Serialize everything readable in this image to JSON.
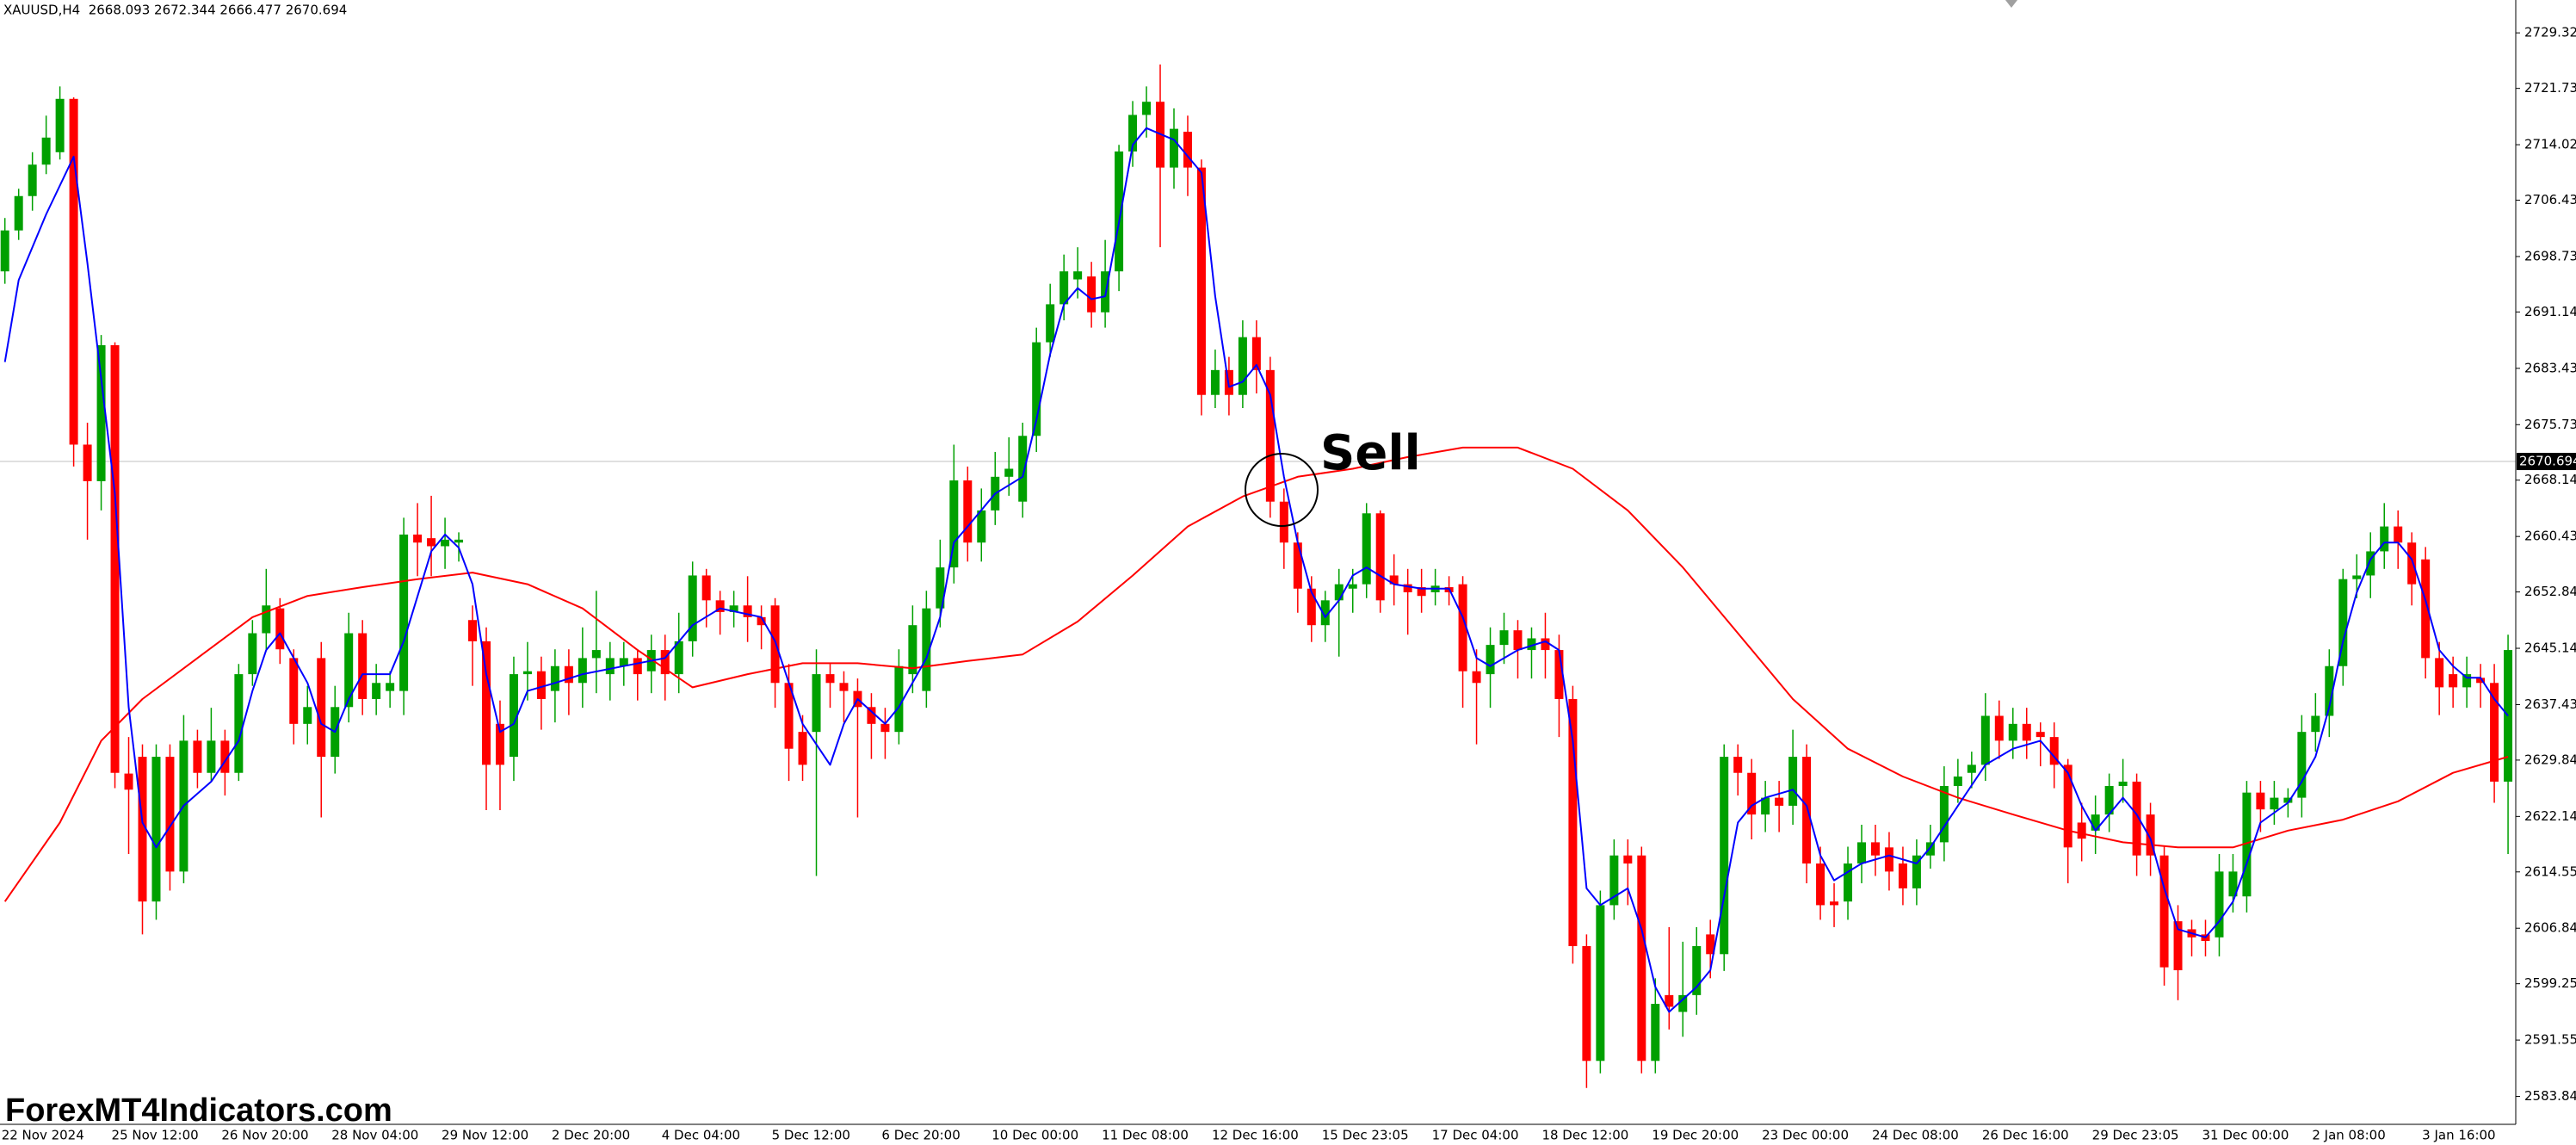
{
  "chart_data": {
    "type": "candlestick",
    "header": "XAUUSD,H4  2668.093 2672.344 2666.477 2670.694",
    "annotation": "Sell",
    "watermark": "ForexMT4Indicators.com",
    "up_color": "#00a000",
    "down_color": "#ff0000",
    "current_price": 2670.694,
    "ylim": [
      2580.02,
      2733.82
    ],
    "yticks": [
      2729.325,
      {
        "value": 2721.73,
        "label": "2721.730"
      },
      2714.025,
      2706.435,
      {
        "value": 2698.73,
        "label": "2698.730"
      },
      2691.145,
      2683.435,
      {
        "value": 2675.73,
        "label": "2675.730"
      },
      {
        "value": 2668.14,
        "label": "2668.140"
      },
      2660.435,
      2652.845,
      {
        "value": 2645.14,
        "label": "2645.140"
      },
      2637.435,
      2629.845,
      {
        "value": 2622.14,
        "label": "2622.140"
      },
      {
        "value": 2614.55,
        "label": "2614.550"
      },
      2606.845,
      2599.255,
      {
        "value": 2591.55,
        "label": "2591.550"
      },
      2583.845
    ],
    "categories": [
      "22 Nov 2024",
      null,
      null,
      null,
      null,
      null,
      null,
      null,
      "25 Nov 12:00",
      null,
      null,
      null,
      null,
      null,
      null,
      null,
      "26 Nov 20:00",
      null,
      null,
      null,
      null,
      null,
      null,
      null,
      "28 Nov 04:00",
      null,
      null,
      null,
      null,
      null,
      null,
      null,
      "29 Nov 12:00",
      null,
      null,
      null,
      null,
      null,
      null,
      null,
      "2 Dec 20:00",
      null,
      null,
      null,
      null,
      null,
      null,
      null,
      "4 Dec 04:00",
      null,
      null,
      null,
      null,
      null,
      null,
      null,
      "5 Dec 12:00",
      null,
      null,
      null,
      null,
      null,
      null,
      null,
      "6 Dec 20:00",
      null,
      null,
      null,
      null,
      null,
      null,
      null,
      "10 Dec 00:00",
      null,
      null,
      null,
      null,
      null,
      null,
      null,
      "11 Dec 08:00",
      null,
      null,
      null,
      null,
      null,
      null,
      null,
      "12 Dec 16:00",
      null,
      null,
      null,
      null,
      null,
      null,
      null,
      "15 Dec 23:05",
      null,
      null,
      null,
      null,
      null,
      null,
      null,
      "17 Dec 04:00",
      null,
      null,
      null,
      null,
      null,
      null,
      null,
      "18 Dec 12:00",
      null,
      null,
      null,
      null,
      null,
      null,
      null,
      "19 Dec 20:00",
      null,
      null,
      null,
      null,
      null,
      null,
      null,
      "23 Dec 00:00",
      null,
      null,
      null,
      null,
      null,
      null,
      null,
      "24 Dec 08:00",
      null,
      null,
      null,
      null,
      null,
      null,
      null,
      "26 Dec 16:00",
      null,
      null,
      null,
      null,
      null,
      null,
      null,
      "29 Dec 23:05",
      null,
      null,
      null,
      null,
      null,
      null,
      null,
      "31 Dec 00:00",
      null,
      null,
      null,
      null,
      null,
      null,
      null,
      "2 Jan 08:00",
      null,
      null,
      null,
      null,
      null,
      null,
      null,
      "3 Jan 16:00",
      null,
      null,
      null,
      null,
      null,
      null
    ],
    "open": [
      2696.7,
      2702.3,
      2707,
      2711.3,
      2713,
      2720.3,
      2673,
      2668,
      2686.6,
      2628,
      2630.3,
      2610.5,
      2630.3,
      2614.6,
      2632.5,
      2628.1,
      2632.5,
      2628.1,
      2641.6,
      2647.2,
      2650.6,
      2643.8,
      2634.8,
      2643.8,
      2630.3,
      2637.1,
      2647.2,
      2638.2,
      2639.3,
      2639.3,
      2660.7,
      2660.2,
      2659.1,
      2659.6,
      2649,
      2646.1,
      2634.8,
      2630.3,
      2641.6,
      2642,
      2639.3,
      2642.7,
      2640.4,
      2643.8,
      2641.6,
      2642.7,
      2643.8,
      2642,
      2644.9,
      2641.6,
      2646.1,
      2655.1,
      2651.7,
      2650.1,
      2651,
      2649.4,
      2651,
      2640.4,
      2633.7,
      2633.7,
      2641.6,
      2640.4,
      2639.3,
      2637.1,
      2634.8,
      2633.7,
      2641.6,
      2639.3,
      2650.6,
      2656.2,
      2668.1,
      2659.6,
      2664,
      2668.6,
      2665.2,
      2674.2,
      2687,
      2692.2,
      2695.6,
      2696,
      2691.1,
      2696.7,
      2713.1,
      2718.1,
      2719.9,
      2710.9,
      2715.8,
      2710.9,
      2679.8,
      2683.2,
      2679.8,
      2687.7,
      2683.2,
      2665.2,
      2659.6,
      2653.3,
      2648.3,
      2651.7,
      2653.3,
      2653.9,
      2663.6,
      2655.1,
      2653.9,
      2653.5,
      2652.8,
      2653.5,
      2653.9,
      2642,
      2641.6,
      2645.6,
      2647.6,
      2644.9,
      2646.5,
      2644.9,
      2638.2,
      2604.4,
      2588.7,
      2610,
      2616.8,
      2616.8,
      2588.7,
      2597.7,
      2595.4,
      2597.7,
      2606,
      2603.3,
      2630.3,
      2628.1,
      2622.4,
      2624.7,
      2623.6,
      2630.3,
      2615.7,
      2610.5,
      2610.5,
      2615.7,
      2618.6,
      2617.9,
      2615.7,
      2612.3,
      2616.8,
      2618.6,
      2626.3,
      2628.1,
      2629.2,
      2635.9,
      2632.5,
      2634.8,
      2633.7,
      2633,
      2629.2,
      2621.3,
      2620.2,
      2622.4,
      2626.3,
      2626.9,
      2622.4,
      2616.8,
      2607.8,
      2606.7,
      2606,
      2605.6,
      2611.2,
      2611.2,
      2625.4,
      2623.1,
      2624,
      2624.7,
      2633.7,
      2635.9,
      2642.7,
      2654.6,
      2655.1,
      2658.4,
      2661.8,
      2659.6,
      2657.3,
      2643.8,
      2641.6,
      2639.8,
      2641.1,
      2640.4,
      2626.9
    ],
    "high": [
      2704,
      2708,
      2713,
      2718,
      2722,
      2720.5,
      2676,
      2688,
      2687,
      2633,
      2632,
      2632,
      2632,
      2636,
      2634,
      2637,
      2634,
      2643,
      2649,
      2656,
      2652,
      2645,
      2640,
      2646,
      2640,
      2650,
      2649,
      2643,
      2642,
      2663,
      2665,
      2666,
      2663,
      2661,
      2651,
      2648,
      2638,
      2644,
      2646,
      2644,
      2645,
      2645,
      2648,
      2653,
      2646,
      2646,
      2645,
      2647,
      2647,
      2650,
      2657,
      2656,
      2653,
      2653,
      2655,
      2651,
      2652,
      2643,
      2636,
      2645,
      2643,
      2642,
      2641,
      2639,
      2637,
      2645,
      2651,
      2653,
      2660,
      2673,
      2670,
      2667,
      2672,
      2674,
      2676,
      2689,
      2695,
      2699,
      2700,
      2698,
      2701,
      2714,
      2720,
      2722,
      2725,
      2719,
      2718,
      2712,
      2686,
      2685,
      2690,
      2690,
      2685,
      2667,
      2661,
      2655,
      2653,
      2656,
      2656,
      2665,
      2664,
      2658,
      2656,
      2656,
      2656,
      2655,
      2655,
      2645,
      2648,
      2650,
      2649,
      2648,
      2650,
      2647,
      2640,
      2606,
      2612,
      2619,
      2619,
      2618,
      2600,
      2607,
      2605,
      2607,
      2608,
      2632,
      2632,
      2630,
      2627,
      2627,
      2634,
      2632,
      2618,
      2613,
      2618,
      2621,
      2621,
      2620,
      2618,
      2619,
      2621,
      2629,
      2630,
      2631,
      2639,
      2638,
      2637,
      2637,
      2635,
      2635,
      2630,
      2624,
      2625,
      2628,
      2630,
      2628,
      2624,
      2618,
      2610,
      2608,
      2608,
      2617,
      2617,
      2627,
      2627,
      2627,
      2626,
      2636,
      2639,
      2645,
      2656,
      2658,
      2661,
      2665,
      2664,
      2661,
      2659,
      2646,
      2644,
      2644,
      2643,
      2643,
      2647
    ],
    "low": [
      2695,
      2701,
      2705,
      2710,
      2712,
      2670,
      2660,
      2664,
      2626,
      2617,
      2606,
      2608,
      2612,
      2613,
      2626,
      2627,
      2625,
      2627,
      2640,
      2645,
      2643,
      2632,
      2632,
      2622,
      2628,
      2635,
      2636,
      2636,
      2637,
      2636,
      2655,
      2655,
      2656,
      2657,
      2640,
      2623,
      2623,
      2627,
      2638,
      2634,
      2635,
      2636,
      2637,
      2639,
      2638,
      2640,
      2638,
      2639,
      2638,
      2639,
      2644,
      2648,
      2647,
      2648,
      2646,
      2645,
      2637,
      2627,
      2627,
      2614,
      2637,
      2635,
      2622,
      2630,
      2630,
      2632,
      2639,
      2637,
      2648,
      2654,
      2657,
      2657,
      2662,
      2666,
      2663,
      2672,
      2685,
      2690,
      2693,
      2689,
      2689,
      2694,
      2711,
      2715,
      2700,
      2708,
      2707,
      2677,
      2678,
      2677,
      2678,
      2680,
      2663,
      2656,
      2650,
      2646,
      2646,
      2644,
      2650,
      2652,
      2650,
      2651,
      2647,
      2650,
      2651,
      2651,
      2637,
      2632,
      2637,
      2643,
      2641,
      2641,
      2641,
      2633,
      2602,
      2585,
      2587,
      2608,
      2610,
      2587,
      2587,
      2593,
      2592,
      2595,
      2600,
      2601,
      2625,
      2619,
      2620,
      2620,
      2621,
      2613,
      2608,
      2607,
      2608,
      2613,
      2614,
      2612,
      2610,
      2610,
      2615,
      2616,
      2624,
      2626,
      2627,
      2630,
      2630,
      2630,
      2629,
      2626,
      2613,
      2616,
      2617,
      2620,
      2624,
      2614,
      2614,
      2599,
      2597,
      2603,
      2603,
      2603,
      2609,
      2609,
      2620,
      2621,
      2622,
      2622,
      2631,
      2633,
      2640,
      2652,
      2652,
      2656,
      2656,
      2651,
      2641,
      2636,
      2637,
      2637,
      2637,
      2624,
      2617
    ],
    "close": [
      2702.3,
      2707,
      2711.3,
      2715,
      2720.3,
      2673,
      2668,
      2686.6,
      2628.1,
      2625.8,
      2610.5,
      2630.3,
      2614.6,
      2632.5,
      2628.1,
      2632.5,
      2628.1,
      2641.6,
      2647.2,
      2651,
      2645,
      2634.8,
      2637.1,
      2630.3,
      2637.1,
      2647.2,
      2638.2,
      2640.4,
      2640.4,
      2660.7,
      2659.6,
      2659.1,
      2660,
      2660,
      2646.1,
      2629.2,
      2629.2,
      2641.6,
      2642,
      2638.2,
      2642.7,
      2640.4,
      2643.8,
      2644.9,
      2643.8,
      2643.8,
      2641.6,
      2644.9,
      2641.6,
      2646.1,
      2655.1,
      2651.7,
      2650.1,
      2651,
      2649.4,
      2648.3,
      2640.4,
      2631.4,
      2629.2,
      2641.6,
      2640.4,
      2639.3,
      2637.1,
      2634.8,
      2633.7,
      2642.7,
      2648.3,
      2650.6,
      2656.2,
      2668.1,
      2659.6,
      2664,
      2668.6,
      2669.7,
      2674.2,
      2687,
      2692.2,
      2696.7,
      2696.7,
      2691.1,
      2696.7,
      2713.1,
      2718.1,
      2719.9,
      2710.9,
      2716.2,
      2710.9,
      2679.8,
      2683.2,
      2679.8,
      2687.7,
      2683.2,
      2665.2,
      2659.6,
      2653.3,
      2648.3,
      2651.7,
      2653.9,
      2653.9,
      2663.6,
      2651.7,
      2653.9,
      2652.8,
      2652.3,
      2653.7,
      2652.8,
      2642,
      2640.4,
      2645.6,
      2647.6,
      2644.9,
      2646.5,
      2644.9,
      2638.2,
      2604.4,
      2588.7,
      2610,
      2616.8,
      2615.7,
      2588.7,
      2596.5,
      2596.1,
      2597.7,
      2604.4,
      2603.3,
      2630.3,
      2628.1,
      2622.4,
      2624.7,
      2623.6,
      2630.3,
      2615.7,
      2610,
      2610,
      2615.7,
      2618.6,
      2616.8,
      2614.6,
      2612.3,
      2616.8,
      2618.6,
      2626.3,
      2627.6,
      2629.2,
      2635.9,
      2632.5,
      2634.8,
      2632.5,
      2633,
      2629.2,
      2617.9,
      2619.1,
      2622.4,
      2626.3,
      2626.9,
      2616.8,
      2616.8,
      2601.5,
      2601.1,
      2605.6,
      2605.1,
      2614.6,
      2614.6,
      2625.4,
      2623.1,
      2624.7,
      2624.7,
      2633.7,
      2635.9,
      2642.7,
      2654.6,
      2655.1,
      2658.4,
      2661.8,
      2659.6,
      2653.9,
      2643.8,
      2639.8,
      2639.8,
      2641.6,
      2640.4,
      2626.9,
      2644.9
    ],
    "lines": [
      {
        "color": "#ff0000",
        "x": [
          0,
          4,
          7,
          10,
          14,
          18,
          22,
          26,
          30,
          34,
          38,
          42,
          46,
          50,
          54,
          58,
          62,
          66,
          70,
          74,
          78,
          82,
          86,
          90,
          94,
          98,
          102,
          106,
          110,
          114,
          118,
          122,
          126,
          130,
          134,
          138,
          142,
          146,
          150,
          154,
          158,
          162,
          166,
          170,
          174,
          178,
          182
        ],
        "values": [
          2610.5,
          2621.3,
          2632.5,
          2638.2,
          2643.8,
          2649.4,
          2652.3,
          2653.5,
          2654.6,
          2655.5,
          2653.9,
          2650.6,
          2644.9,
          2639.8,
          2641.6,
          2643.1,
          2643.1,
          2642.4,
          2643.4,
          2644.3,
          2648.8,
          2655.1,
          2661.8,
          2665.9,
          2668.6,
          2669.7,
          2671.3,
          2672.6,
          2672.6,
          2669.7,
          2664,
          2656.2,
          2647.2,
          2638.2,
          2631.4,
          2627.6,
          2624.7,
          2622.4,
          2620.2,
          2618.6,
          2617.9,
          2617.9,
          2620.2,
          2621.7,
          2624.2,
          2628.1,
          2630.3
        ]
      },
      {
        "color": "#0000ff",
        "x": [
          0,
          1,
          3,
          5,
          6,
          8,
          9,
          10,
          11,
          13,
          15,
          17,
          18,
          19,
          20,
          22,
          23,
          24,
          25,
          26,
          28,
          29,
          31,
          32,
          33,
          34,
          35,
          36,
          37,
          38,
          40,
          42,
          45,
          48,
          50,
          52,
          55,
          56,
          57,
          58,
          60,
          61,
          62,
          64,
          65,
          67,
          68,
          69,
          70,
          72,
          74,
          75,
          76,
          77,
          78,
          79,
          80,
          81,
          82,
          83,
          85,
          87,
          88,
          89,
          90,
          91,
          92,
          93,
          94,
          95,
          96,
          97,
          98,
          99,
          101,
          103,
          105,
          106,
          107,
          108,
          110,
          112,
          113,
          114,
          115,
          116,
          118,
          119,
          120,
          121,
          123,
          124,
          125,
          126,
          127,
          128,
          130,
          131,
          132,
          133,
          135,
          137,
          139,
          140,
          142,
          144,
          146,
          148,
          150,
          151,
          152,
          154,
          155,
          156,
          157,
          158,
          160,
          161,
          162,
          163,
          164,
          166,
          167,
          168,
          169,
          170,
          171,
          172,
          173,
          174,
          175,
          176,
          177,
          178,
          179,
          180,
          181,
          182
        ],
        "values": [
          2684.3,
          2695.5,
          2704.5,
          2712.4,
          2697.8,
          2666.3,
          2637.1,
          2621.3,
          2617.9,
          2623.6,
          2626.9,
          2632.5,
          2639.3,
          2644.9,
          2647.2,
          2640.4,
          2634.8,
          2633.7,
          2638.2,
          2641.6,
          2641.6,
          2646.1,
          2658.4,
          2660.7,
          2658.9,
          2653.9,
          2641.6,
          2633.7,
          2634.8,
          2639.3,
          2640.4,
          2641.6,
          2642.7,
          2643.8,
          2648.3,
          2650.6,
          2649.4,
          2646.1,
          2640.4,
          2634.8,
          2629.2,
          2634.8,
          2638.2,
          2634.8,
          2637.1,
          2643.8,
          2649.4,
          2659.6,
          2661.8,
          2666.3,
          2668.6,
          2676.4,
          2685.4,
          2692.2,
          2694.4,
          2692.9,
          2693.3,
          2703.4,
          2714,
          2716.3,
          2714.7,
          2710.2,
          2693.3,
          2680.9,
          2681.6,
          2683.9,
          2679.8,
          2668.6,
          2659.6,
          2652.8,
          2649.4,
          2651.7,
          2655.1,
          2656.2,
          2653.9,
          2653.3,
          2653.3,
          2649.4,
          2643.8,
          2642.7,
          2644.9,
          2646.1,
          2644.9,
          2632.5,
          2612.3,
          2610,
          2612.3,
          2606.7,
          2598.8,
          2595.4,
          2598.8,
          2601.1,
          2611.2,
          2621.3,
          2623.6,
          2624.7,
          2625.8,
          2623.6,
          2616.8,
          2613.4,
          2615.7,
          2616.8,
          2615.7,
          2617.9,
          2623.6,
          2629.2,
          2631.4,
          2632.5,
          2628.1,
          2623.6,
          2620.2,
          2624.7,
          2622.4,
          2619.1,
          2612.3,
          2606.7,
          2605.6,
          2607.8,
          2610.5,
          2615.7,
          2621.3,
          2624,
          2626.9,
          2630.3,
          2637.1,
          2646.1,
          2652.8,
          2657.3,
          2659.6,
          2659.6,
          2657.3,
          2651.7,
          2644.9,
          2642.7,
          2641.1,
          2641.1,
          2638.2,
          2635.9
        ]
      }
    ]
  }
}
